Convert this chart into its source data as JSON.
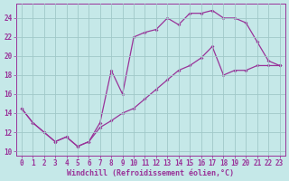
{
  "xlabel": "Windchill (Refroidissement éolien,°C)",
  "background_color": "#c5e8e8",
  "grid_color": "#a0c8c8",
  "line_color": "#993399",
  "xlim_min": -0.5,
  "xlim_max": 23.5,
  "ylim_min": 9.5,
  "ylim_max": 25.5,
  "xticks": [
    0,
    1,
    2,
    3,
    4,
    5,
    6,
    7,
    8,
    9,
    10,
    11,
    12,
    13,
    14,
    15,
    16,
    17,
    18,
    19,
    20,
    21,
    22,
    23
  ],
  "yticks": [
    10,
    12,
    14,
    16,
    18,
    20,
    22,
    24
  ],
  "upper_x": [
    0,
    1,
    2,
    3,
    4,
    5,
    6,
    7,
    8,
    9,
    10,
    11,
    12,
    13,
    14,
    15,
    16,
    17,
    18,
    19,
    20,
    21,
    22,
    23
  ],
  "upper_y": [
    14.5,
    13.0,
    12.0,
    11.0,
    11.5,
    10.5,
    11.0,
    13.0,
    18.5,
    16.0,
    22.0,
    22.5,
    22.8,
    24.0,
    23.3,
    24.5,
    24.5,
    24.8,
    24.0,
    24.0,
    23.5,
    21.5,
    19.5,
    19.0
  ],
  "lower_x": [
    0,
    1,
    2,
    3,
    4,
    5,
    6,
    7,
    8,
    9,
    10,
    11,
    12,
    13,
    14,
    15,
    16,
    17,
    18,
    19,
    20,
    21,
    22,
    23
  ],
  "lower_y": [
    14.5,
    13.0,
    12.0,
    11.0,
    11.5,
    10.5,
    11.0,
    12.5,
    13.2,
    14.0,
    14.5,
    15.5,
    16.5,
    17.5,
    18.5,
    19.0,
    19.8,
    21.0,
    18.0,
    18.5,
    18.5,
    19.0,
    19.0,
    19.0
  ],
  "tick_fontsize": 5.5,
  "label_fontsize": 6.0
}
